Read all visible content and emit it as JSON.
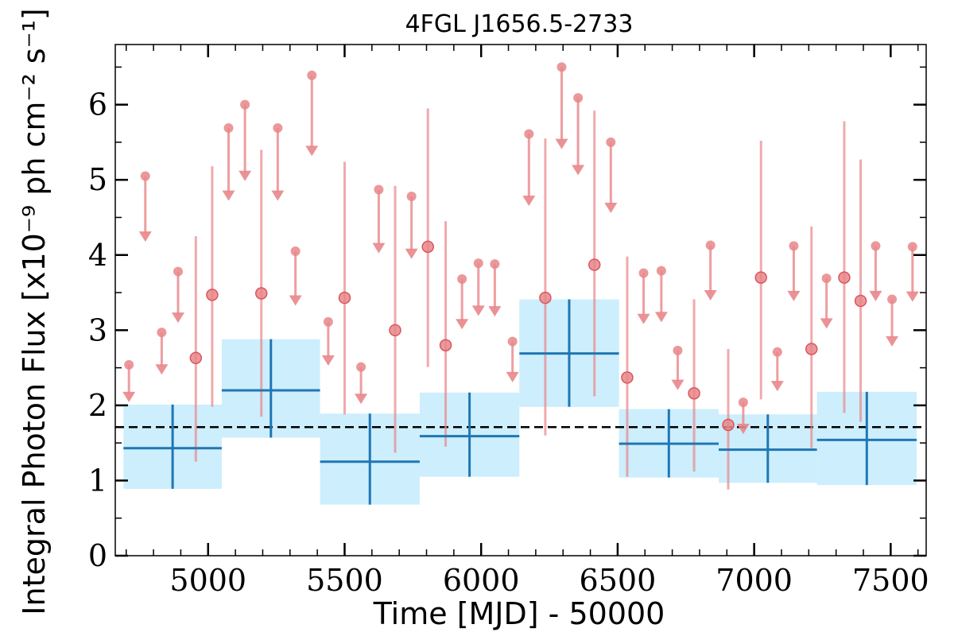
{
  "chart_data": {
    "type": "scatter",
    "title": "4FGL J1656.5-2733",
    "xlabel": "Time [MJD] - 50000",
    "ylabel": "Integral Photon Flux [x10⁻⁹ ph cm⁻² s⁻¹]",
    "xlim": [
      4660,
      7630
    ],
    "ylim": [
      0,
      6.8
    ],
    "xticks": [
      5000,
      5500,
      6000,
      6500,
      7000,
      7500
    ],
    "yticks": [
      0,
      1,
      2,
      3,
      4,
      5,
      6
    ],
    "mean_flux": 1.71,
    "colors": {
      "short_bins": "#e8868a",
      "long_bins": "#1f77b4",
      "long_band": "#cdeefc",
      "mean_line": "#000000"
    },
    "series": [
      {
        "marker": "circle",
        "points": [
          {
            "x": 4955,
            "y": 2.63,
            "lo": 1.25,
            "hi": 4.25
          },
          {
            "x": 5015,
            "y": 3.47,
            "lo": 1.98,
            "hi": 5.18
          },
          {
            "x": 5195,
            "y": 3.49,
            "lo": 1.85,
            "hi": 5.4
          },
          {
            "x": 5500,
            "y": 3.43,
            "lo": 1.88,
            "hi": 5.24
          },
          {
            "x": 5685,
            "y": 3.0,
            "lo": 1.37,
            "hi": 4.92
          },
          {
            "x": 5805,
            "y": 4.11,
            "lo": 2.51,
            "hi": 5.95
          },
          {
            "x": 5870,
            "y": 2.8,
            "lo": 1.45,
            "hi": 4.45
          },
          {
            "x": 6235,
            "y": 3.43,
            "lo": 1.6,
            "hi": 5.55
          },
          {
            "x": 6415,
            "y": 3.87,
            "lo": 2.12,
            "hi": 5.92
          },
          {
            "x": 6535,
            "y": 2.37,
            "lo": 1.05,
            "hi": 3.98
          },
          {
            "x": 6780,
            "y": 2.16,
            "lo": 1.12,
            "hi": 3.41
          },
          {
            "x": 6905,
            "y": 1.74,
            "lo": 0.88,
            "hi": 2.75
          },
          {
            "x": 7025,
            "y": 3.7,
            "lo": 2.08,
            "hi": 5.52
          },
          {
            "x": 7210,
            "y": 2.75,
            "lo": 1.43,
            "hi": 4.38
          },
          {
            "x": 7330,
            "y": 3.7,
            "lo": 1.9,
            "hi": 5.78
          },
          {
            "x": 7390,
            "y": 3.39,
            "lo": 1.78,
            "hi": 5.27
          }
        ]
      },
      {
        "marker": "upper-limit",
        "points": [
          {
            "x": 4710,
            "y": 2.54
          },
          {
            "x": 4770,
            "y": 5.05
          },
          {
            "x": 4830,
            "y": 2.97
          },
          {
            "x": 4890,
            "y": 3.78
          },
          {
            "x": 5075,
            "y": 5.69
          },
          {
            "x": 5135,
            "y": 6.0
          },
          {
            "x": 5255,
            "y": 5.69
          },
          {
            "x": 5320,
            "y": 4.05
          },
          {
            "x": 5380,
            "y": 6.39
          },
          {
            "x": 5440,
            "y": 3.11
          },
          {
            "x": 5560,
            "y": 2.51
          },
          {
            "x": 5625,
            "y": 4.87
          },
          {
            "x": 5745,
            "y": 4.78
          },
          {
            "x": 5930,
            "y": 3.68
          },
          {
            "x": 5990,
            "y": 3.89
          },
          {
            "x": 6050,
            "y": 3.88
          },
          {
            "x": 6115,
            "y": 2.85
          },
          {
            "x": 6175,
            "y": 5.61
          },
          {
            "x": 6295,
            "y": 6.5
          },
          {
            "x": 6355,
            "y": 6.09
          },
          {
            "x": 6475,
            "y": 5.5
          },
          {
            "x": 6595,
            "y": 3.76
          },
          {
            "x": 6660,
            "y": 3.79
          },
          {
            "x": 6720,
            "y": 2.73
          },
          {
            "x": 6840,
            "y": 4.13
          },
          {
            "x": 6960,
            "y": 2.04
          },
          {
            "x": 7085,
            "y": 2.71
          },
          {
            "x": 7145,
            "y": 4.12
          },
          {
            "x": 7265,
            "y": 3.69
          },
          {
            "x": 7445,
            "y": 4.12
          },
          {
            "x": 7505,
            "y": 3.41
          },
          {
            "x": 7580,
            "y": 4.11
          }
        ]
      },
      {
        "marker": "crosshair-band",
        "points": [
          {
            "x0": 4690,
            "x1": 5050,
            "y": 1.43,
            "lo": 0.89,
            "hi": 2.01
          },
          {
            "x0": 5050,
            "x1": 5410,
            "y": 2.2,
            "lo": 1.57,
            "hi": 2.88
          },
          {
            "x0": 5410,
            "x1": 5775,
            "y": 1.25,
            "lo": 0.68,
            "hi": 1.89
          },
          {
            "x0": 5775,
            "x1": 6140,
            "y": 1.59,
            "lo": 1.05,
            "hi": 2.17
          },
          {
            "x0": 6140,
            "x1": 6505,
            "y": 2.69,
            "lo": 1.98,
            "hi": 3.41
          },
          {
            "x0": 6505,
            "x1": 6870,
            "y": 1.49,
            "lo": 1.04,
            "hi": 1.95
          },
          {
            "x0": 6870,
            "x1": 7230,
            "y": 1.41,
            "lo": 0.97,
            "hi": 1.88
          },
          {
            "x0": 7230,
            "x1": 7595,
            "y": 1.54,
            "lo": 0.94,
            "hi": 2.18
          }
        ]
      }
    ]
  }
}
